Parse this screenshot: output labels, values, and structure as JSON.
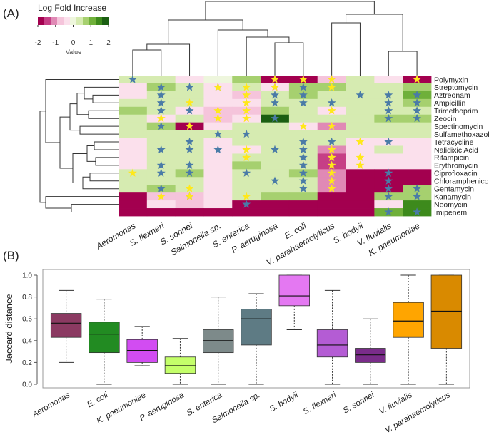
{
  "chart_data": [
    {
      "panel": "(A)",
      "type": "heatmap",
      "legend": {
        "title": "Log Fold Increase",
        "tick_labels": [
          "-2",
          "-1",
          "0",
          "1",
          "2"
        ],
        "range": [
          -2,
          2
        ],
        "xlabel": "Value",
        "colors": [
          "#a3004f",
          "#c63f86",
          "#e089b5",
          "#f5c4db",
          "#fbe0ec",
          "#eef6dd",
          "#d6ebb1",
          "#a6d06f",
          "#6fb03a",
          "#3d8a1c",
          "#1b5e12"
        ]
      },
      "columns": [
        "Aeromonas",
        "S. flexneri",
        "S. sonnei",
        "Salmonella sp.",
        "S. enterica",
        "P. aeruginosa",
        "E. coli",
        "V. parahaemolyticus",
        "S. bodyii",
        "V. fluvialis",
        "K. pneumoniae"
      ],
      "rows": [
        "Polymyxin",
        "Streptomycin",
        "Aztreonam",
        "Ampicillin",
        "Trimethoprim",
        "Zeocin",
        "Spectinomycin",
        "Sulfamethoxazole",
        "Tetracycline",
        "Nalidixic Acid",
        "Rifampicin",
        "Erythromycin",
        "Ciprofloxacin",
        "Chloramphenicol",
        "Gentamycin",
        "Kanamycin",
        "Neomycin",
        "Imipenem"
      ],
      "values": [
        [
          0.2,
          0.2,
          -0.5,
          -0.2,
          0.8,
          -2.2,
          -2.2,
          -1.0,
          0.2,
          -0.5,
          -2.2
        ],
        [
          -0.3,
          0.8,
          0.2,
          -0.5,
          0.5,
          -0.5,
          0.8,
          0.8,
          0.2,
          0.3,
          0.8
        ],
        [
          -0.3,
          0.2,
          0.2,
          -0.5,
          -0.8,
          0.2,
          0.8,
          0.2,
          0.2,
          0.2,
          1.0
        ],
        [
          0.2,
          0.2,
          0.2,
          -0.5,
          -0.5,
          0.2,
          0.2,
          0.2,
          0.2,
          0.2,
          0.8
        ],
        [
          0.8,
          0.2,
          -0.5,
          -0.8,
          -1.0,
          0.8,
          0.2,
          -0.5,
          0.2,
          0.2,
          0.5
        ],
        [
          0.2,
          -0.5,
          0.2,
          -0.8,
          -0.5,
          2.0,
          0.2,
          0.2,
          0.2,
          0.8,
          0.8
        ],
        [
          0.2,
          0.8,
          -2.2,
          -0.5,
          0.2,
          0.2,
          -0.5,
          -1.2,
          0.2,
          0.2,
          0.2
        ],
        [
          0.2,
          0.2,
          0.2,
          0.2,
          0.2,
          0.2,
          0.2,
          0.2,
          0.2,
          0.2,
          0.2
        ],
        [
          -0.3,
          0.2,
          0.2,
          -0.3,
          0.2,
          0.2,
          0.2,
          0.2,
          -0.5,
          -0.3,
          -0.3
        ],
        [
          -0.3,
          0.2,
          0.2,
          -0.3,
          -0.5,
          0.2,
          0.2,
          -1.2,
          -0.3,
          0.2,
          -0.3
        ],
        [
          -0.3,
          0.2,
          0.2,
          -0.3,
          0.2,
          0.2,
          0.2,
          -1.5,
          -0.3,
          -0.3,
          -0.3
        ],
        [
          -0.3,
          0.2,
          0.2,
          -0.3,
          0.8,
          0.2,
          0.2,
          -1.5,
          -0.3,
          -0.3,
          -0.3
        ],
        [
          0.2,
          0.2,
          0.8,
          -0.3,
          0.2,
          0.2,
          0.8,
          -1.2,
          -2.2,
          -2.2,
          -2.2
        ],
        [
          0.2,
          0.2,
          0.2,
          -0.3,
          0.2,
          0.2,
          0.2,
          -1.2,
          -2.2,
          -2.2,
          -2.2
        ],
        [
          0.2,
          0.8,
          0.2,
          -0.3,
          0.2,
          0.2,
          0.2,
          -1.2,
          -2.2,
          -2.2,
          0.8
        ],
        [
          -2.2,
          -1.0,
          -1.0,
          -0.3,
          0.2,
          0.8,
          0.8,
          -2.2,
          -2.2,
          0.8,
          0.8
        ],
        [
          -2.2,
          -0.5,
          -1.0,
          -0.3,
          -2.2,
          -2.2,
          -2.2,
          -2.2,
          -2.2,
          -0.5,
          1.5
        ],
        [
          -2.2,
          -2.2,
          -2.2,
          -2.2,
          -2.2,
          -2.2,
          -2.2,
          -2.2,
          -2.2,
          1.0,
          1.5
        ]
      ],
      "stars": {
        "blue": [
          [
            0,
            0
          ],
          [
            1,
            1
          ],
          [
            1,
            2
          ],
          [
            1,
            3
          ],
          [
            1,
            5
          ],
          [
            1,
            6
          ],
          [
            2,
            1
          ],
          [
            2,
            5
          ],
          [
            2,
            6
          ],
          [
            2,
            8
          ],
          [
            2,
            9
          ],
          [
            2,
            10
          ],
          [
            3,
            1
          ],
          [
            3,
            5
          ],
          [
            3,
            6
          ],
          [
            3,
            7
          ],
          [
            3,
            9
          ],
          [
            3,
            10
          ],
          [
            4,
            1
          ],
          [
            4,
            2
          ],
          [
            4,
            9
          ],
          [
            4,
            10
          ],
          [
            5,
            5
          ],
          [
            5,
            9
          ],
          [
            5,
            10
          ],
          [
            6,
            1
          ],
          [
            7,
            3
          ],
          [
            7,
            4
          ],
          [
            8,
            2
          ],
          [
            8,
            6
          ],
          [
            8,
            7
          ],
          [
            8,
            9
          ],
          [
            9,
            1
          ],
          [
            9,
            2
          ],
          [
            9,
            3
          ],
          [
            9,
            5
          ],
          [
            9,
            6
          ],
          [
            10,
            6
          ],
          [
            11,
            1
          ],
          [
            11,
            2
          ],
          [
            11,
            6
          ],
          [
            12,
            1
          ],
          [
            12,
            2
          ],
          [
            12,
            4
          ],
          [
            12,
            6
          ],
          [
            12,
            9
          ],
          [
            13,
            5
          ],
          [
            13,
            6
          ],
          [
            13,
            9
          ],
          [
            14,
            1
          ],
          [
            14,
            6
          ],
          [
            14,
            9
          ],
          [
            14,
            10
          ],
          [
            15,
            2
          ],
          [
            15,
            9
          ],
          [
            15,
            10
          ],
          [
            16,
            4
          ],
          [
            17,
            9
          ],
          [
            17,
            10
          ]
        ],
        "yellow": [
          [
            0,
            5
          ],
          [
            0,
            6
          ],
          [
            0,
            7
          ],
          [
            0,
            10
          ],
          [
            1,
            3
          ],
          [
            1,
            4
          ],
          [
            1,
            5
          ],
          [
            1,
            7
          ],
          [
            2,
            4
          ],
          [
            3,
            2
          ],
          [
            3,
            4
          ],
          [
            4,
            3
          ],
          [
            4,
            4
          ],
          [
            4,
            7
          ],
          [
            5,
            1
          ],
          [
            5,
            3
          ],
          [
            5,
            4
          ],
          [
            6,
            2
          ],
          [
            6,
            6
          ],
          [
            6,
            7
          ],
          [
            8,
            8
          ],
          [
            9,
            4
          ],
          [
            9,
            7
          ],
          [
            10,
            4
          ],
          [
            10,
            7
          ],
          [
            10,
            8
          ],
          [
            11,
            7
          ],
          [
            11,
            8
          ],
          [
            12,
            0
          ],
          [
            12,
            7
          ],
          [
            13,
            7
          ],
          [
            14,
            2
          ],
          [
            14,
            7
          ],
          [
            15,
            1
          ],
          [
            15,
            2
          ],
          [
            15,
            4
          ]
        ]
      }
    },
    {
      "panel": "(B)",
      "type": "box",
      "ylabel": "Jaccard distance",
      "ylim": [
        0,
        1
      ],
      "yticks": [
        "0.0",
        "0.2",
        "0.4",
        "0.6",
        "0.8",
        "1.0"
      ],
      "categories": [
        "Aeromonas",
        "E. coli",
        "K. pneumoniae",
        "P. aeruginosa",
        "S. enterica",
        "Salmonella sp.",
        "S. bodyii",
        "S. flexneri",
        "S. sonnei",
        "V. fluvialis",
        "V. parahaemolyticus"
      ],
      "boxes": [
        {
          "min": 0.2,
          "q1": 0.43,
          "median": 0.56,
          "q3": 0.65,
          "max": 0.86,
          "color": "#8b3a62"
        },
        {
          "min": 0.0,
          "q1": 0.29,
          "median": 0.46,
          "q3": 0.57,
          "max": 0.78,
          "color": "#228b22"
        },
        {
          "min": 0.17,
          "q1": 0.2,
          "median": 0.31,
          "q3": 0.41,
          "max": 0.53,
          "color": "#d24cf2"
        },
        {
          "min": 0.0,
          "q1": 0.1,
          "median": 0.17,
          "q3": 0.25,
          "max": 0.42,
          "color": "#c4ff6a"
        },
        {
          "min": 0.0,
          "q1": 0.29,
          "median": 0.4,
          "q3": 0.5,
          "max": 0.8,
          "color": "#7d8a8a"
        },
        {
          "min": 0.0,
          "q1": 0.36,
          "median": 0.6,
          "q3": 0.69,
          "max": 0.83,
          "color": "#5e7b84"
        },
        {
          "min": 0.5,
          "q1": 0.72,
          "median": 0.81,
          "q3": 1.0,
          "max": 1.0,
          "color": "#e478f2"
        },
        {
          "min": 0.0,
          "q1": 0.25,
          "median": 0.36,
          "q3": 0.5,
          "max": 0.86,
          "color": "#b45cd4"
        },
        {
          "min": 0.0,
          "q1": 0.2,
          "median": 0.27,
          "q3": 0.33,
          "max": 0.6,
          "color": "#7a2c8a"
        },
        {
          "min": 0.0,
          "q1": 0.43,
          "median": 0.58,
          "q3": 0.75,
          "max": 1.0,
          "color": "#ffa500"
        },
        {
          "min": 0.0,
          "q1": 0.33,
          "median": 0.67,
          "q3": 1.0,
          "max": 1.0,
          "color": "#d98a00"
        }
      ]
    }
  ]
}
